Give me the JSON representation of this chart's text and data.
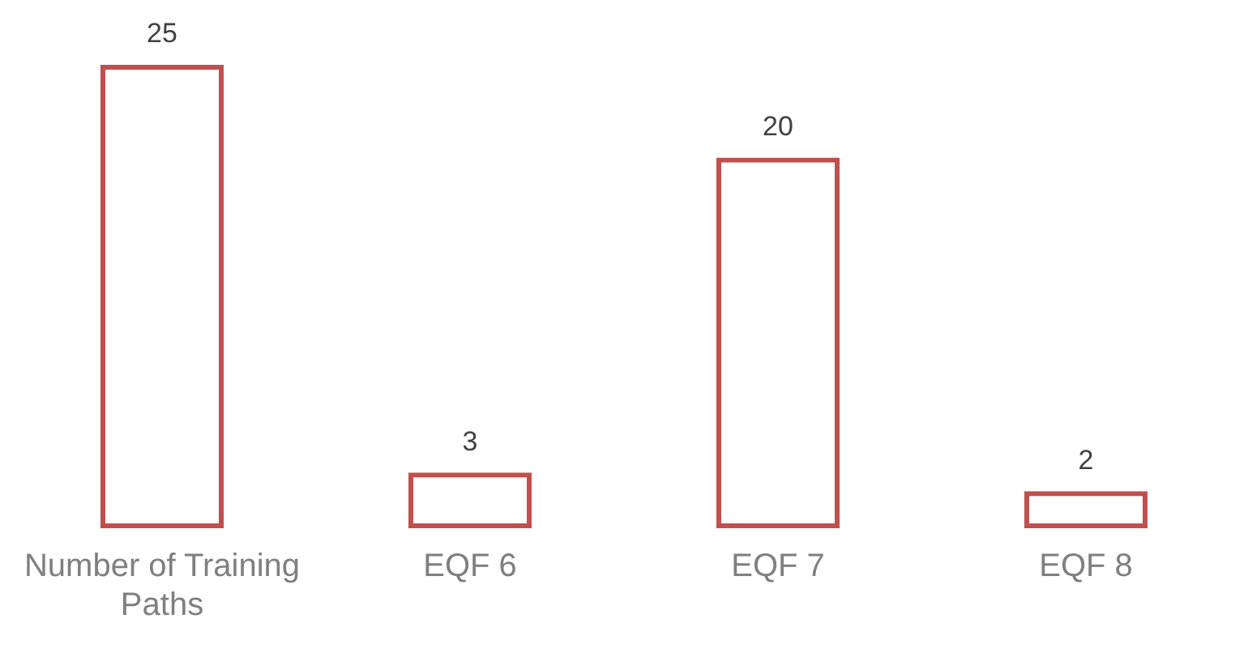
{
  "chart_data": {
    "type": "bar",
    "categories": [
      "Number of Training Paths",
      "EQF 6",
      "EQF 7",
      "EQF 8"
    ],
    "values": [
      25,
      3,
      20,
      2
    ],
    "color": "#c0504d",
    "data_labels": true,
    "grid": false,
    "legend": false
  }
}
